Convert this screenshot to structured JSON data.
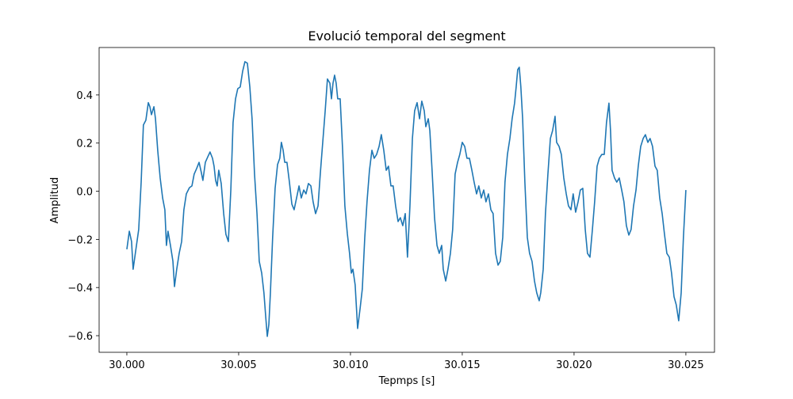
{
  "chart_data": {
    "type": "line",
    "title": "Evolució temporal del segment",
    "x_label": "Tepmps [s]",
    "y_label": "Amplitud",
    "color": "#1f77b4",
    "xlim": [
      29.99876,
      30.02628
    ],
    "ylim": [
      -0.669,
      0.597
    ],
    "xticks": [
      {
        "value": 30.0,
        "label": "30.000"
      },
      {
        "value": 30.005,
        "label": "30.005"
      },
      {
        "value": 30.01,
        "label": "30.010"
      },
      {
        "value": 30.015,
        "label": "30.015"
      },
      {
        "value": 30.02,
        "label": "30.020"
      },
      {
        "value": 30.025,
        "label": "30.025"
      }
    ],
    "yticks": [
      {
        "value": -0.6,
        "label": "−0.6"
      },
      {
        "value": -0.4,
        "label": "−0.4"
      },
      {
        "value": -0.2,
        "label": "−0.2"
      },
      {
        "value": 0.0,
        "label": "0.0"
      },
      0.2,
      0.4
    ],
    "x": [
      30.0,
      30.00011,
      30.00021,
      30.00028,
      30.00039,
      30.00053,
      30.00064,
      30.00074,
      30.00085,
      30.00096,
      30.00103,
      30.0011,
      30.00121,
      30.00128,
      30.00138,
      30.00149,
      30.0016,
      30.0017,
      30.00177,
      30.00184,
      30.00195,
      30.00206,
      30.00213,
      30.00223,
      30.00234,
      30.00245,
      30.00255,
      30.00266,
      30.0028,
      30.00291,
      30.00301,
      30.00312,
      30.00323,
      30.00333,
      30.0034,
      30.00351,
      30.00362,
      30.00372,
      30.00383,
      30.0039,
      30.00397,
      30.00404,
      30.00411,
      30.00422,
      30.00433,
      30.00443,
      30.00454,
      30.00465,
      30.00475,
      30.00486,
      30.00496,
      30.00507,
      30.00518,
      30.00528,
      30.00539,
      30.0055,
      30.0056,
      30.00571,
      30.00582,
      30.00592,
      30.00603,
      30.00613,
      30.00621,
      30.00628,
      30.00635,
      30.00642,
      30.00652,
      30.00663,
      30.00674,
      30.00684,
      30.00691,
      30.00699,
      30.00706,
      30.00716,
      30.00727,
      30.00738,
      30.00748,
      30.00759,
      30.0077,
      30.0078,
      30.00791,
      30.00801,
      30.00812,
      30.00823,
      30.00833,
      30.00844,
      30.00855,
      30.00865,
      30.00876,
      30.00887,
      30.00897,
      30.00908,
      30.00915,
      30.00922,
      30.00929,
      30.00936,
      30.00943,
      30.00954,
      30.00965,
      30.00975,
      30.00986,
      30.00996,
      30.01004,
      30.01011,
      30.01021,
      30.01032,
      30.01043,
      30.01053,
      30.01064,
      30.01074,
      30.01085,
      30.01096,
      30.01106,
      30.01117,
      30.01128,
      30.01138,
      30.01149,
      30.0116,
      30.0117,
      30.01181,
      30.01191,
      30.01202,
      30.01213,
      30.01223,
      30.01234,
      30.01245,
      30.01255,
      30.01266,
      30.01277,
      30.01287,
      30.01298,
      30.01309,
      30.01319,
      30.0133,
      30.01337,
      30.01348,
      30.01355,
      30.01365,
      30.01376,
      30.01387,
      30.01397,
      30.01408,
      30.01415,
      30.01426,
      30.01436,
      30.01447,
      30.01457,
      30.01468,
      30.01479,
      30.01489,
      30.015,
      30.01511,
      30.01521,
      30.01532,
      30.01543,
      30.01553,
      30.01564,
      30.01574,
      30.01585,
      30.01596,
      30.01606,
      30.01617,
      30.01628,
      30.01638,
      30.01649,
      30.0166,
      30.0167,
      30.01681,
      30.01691,
      30.01702,
      30.01713,
      30.01723,
      30.01734,
      30.01741,
      30.01748,
      30.01755,
      30.01762,
      30.0177,
      30.0178,
      30.01791,
      30.01801,
      30.01812,
      30.01823,
      30.01833,
      30.01844,
      30.01851,
      30.01862,
      30.01872,
      30.01883,
      30.01894,
      30.01904,
      30.01915,
      30.01922,
      30.01933,
      30.01943,
      30.01954,
      30.01965,
      30.01975,
      30.01986,
      30.01996,
      30.02007,
      30.02018,
      30.02028,
      30.02039,
      30.0205,
      30.0206,
      30.02071,
      30.02082,
      30.02092,
      30.02103,
      30.02113,
      30.02124,
      30.02135,
      30.02145,
      30.02156,
      30.02163,
      30.0217,
      30.02181,
      30.02191,
      30.02202,
      30.02213,
      30.02223,
      30.02234,
      30.02245,
      30.02255,
      30.02266,
      30.02277,
      30.02287,
      30.02298,
      30.02309,
      30.02319,
      30.0233,
      30.0234,
      30.02351,
      30.02362,
      30.02372,
      30.02383,
      30.02394,
      30.02404,
      30.02415,
      30.02426,
      30.02436,
      30.02447,
      30.02457,
      30.02468,
      30.02479,
      30.02489,
      30.025
    ],
    "values": [
      -0.241,
      -0.166,
      -0.209,
      -0.324,
      -0.251,
      -0.159,
      0.038,
      0.275,
      0.295,
      0.368,
      0.351,
      0.318,
      0.351,
      0.301,
      0.17,
      0.055,
      -0.028,
      -0.077,
      -0.225,
      -0.166,
      -0.225,
      -0.291,
      -0.396,
      -0.324,
      -0.258,
      -0.209,
      -0.077,
      -0.011,
      0.015,
      0.022,
      0.071,
      0.094,
      0.12,
      0.078,
      0.045,
      0.12,
      0.143,
      0.163,
      0.137,
      0.104,
      0.045,
      0.022,
      0.087,
      0.032,
      -0.093,
      -0.179,
      -0.209,
      0.005,
      0.285,
      0.384,
      0.426,
      0.433,
      0.499,
      0.538,
      0.532,
      0.433,
      0.301,
      0.071,
      -0.093,
      -0.291,
      -0.34,
      -0.422,
      -0.521,
      -0.603,
      -0.554,
      -0.422,
      -0.192,
      0.012,
      0.111,
      0.137,
      0.203,
      0.17,
      0.12,
      0.12,
      0.038,
      -0.054,
      -0.077,
      -0.028,
      0.022,
      -0.028,
      0.005,
      -0.011,
      0.032,
      0.022,
      -0.044,
      -0.093,
      -0.061,
      0.071,
      0.203,
      0.334,
      0.466,
      0.449,
      0.384,
      0.449,
      0.482,
      0.449,
      0.384,
      0.384,
      0.17,
      -0.061,
      -0.176,
      -0.258,
      -0.34,
      -0.324,
      -0.389,
      -0.57,
      -0.488,
      -0.406,
      -0.192,
      -0.044,
      0.087,
      0.17,
      0.137,
      0.153,
      0.186,
      0.235,
      0.17,
      0.087,
      0.104,
      0.022,
      0.022,
      -0.061,
      -0.126,
      -0.11,
      -0.143,
      -0.093,
      -0.274,
      -0.061,
      0.219,
      0.334,
      0.368,
      0.301,
      0.374,
      0.334,
      0.268,
      0.301,
      0.252,
      0.087,
      -0.11,
      -0.225,
      -0.258,
      -0.225,
      -0.324,
      -0.373,
      -0.324,
      -0.258,
      -0.159,
      0.071,
      0.12,
      0.153,
      0.203,
      0.186,
      0.137,
      0.137,
      0.087,
      0.038,
      -0.011,
      0.022,
      -0.028,
      0.005,
      -0.044,
      -0.011,
      -0.077,
      -0.093,
      -0.258,
      -0.307,
      -0.291,
      -0.192,
      0.038,
      0.153,
      0.219,
      0.301,
      0.366,
      0.433,
      0.505,
      0.515,
      0.433,
      0.301,
      0.038,
      -0.192,
      -0.258,
      -0.291,
      -0.373,
      -0.422,
      -0.455,
      -0.422,
      -0.324,
      -0.093,
      0.071,
      0.219,
      0.252,
      0.311,
      0.203,
      0.186,
      0.153,
      0.055,
      -0.011,
      -0.061,
      -0.077,
      -0.011,
      -0.087,
      -0.044,
      0.005,
      0.012,
      -0.159,
      -0.258,
      -0.274,
      -0.159,
      -0.044,
      0.104,
      0.137,
      0.153,
      0.153,
      0.285,
      0.366,
      0.252,
      0.087,
      0.055,
      0.038,
      0.055,
      0.005,
      -0.044,
      -0.143,
      -0.182,
      -0.159,
      -0.061,
      0.005,
      0.104,
      0.186,
      0.219,
      0.235,
      0.203,
      0.219,
      0.186,
      0.104,
      0.087,
      -0.028,
      -0.093,
      -0.176,
      -0.258,
      -0.274,
      -0.34,
      -0.438,
      -0.472,
      -0.538,
      -0.422,
      -0.192,
      0.005
    ]
  }
}
